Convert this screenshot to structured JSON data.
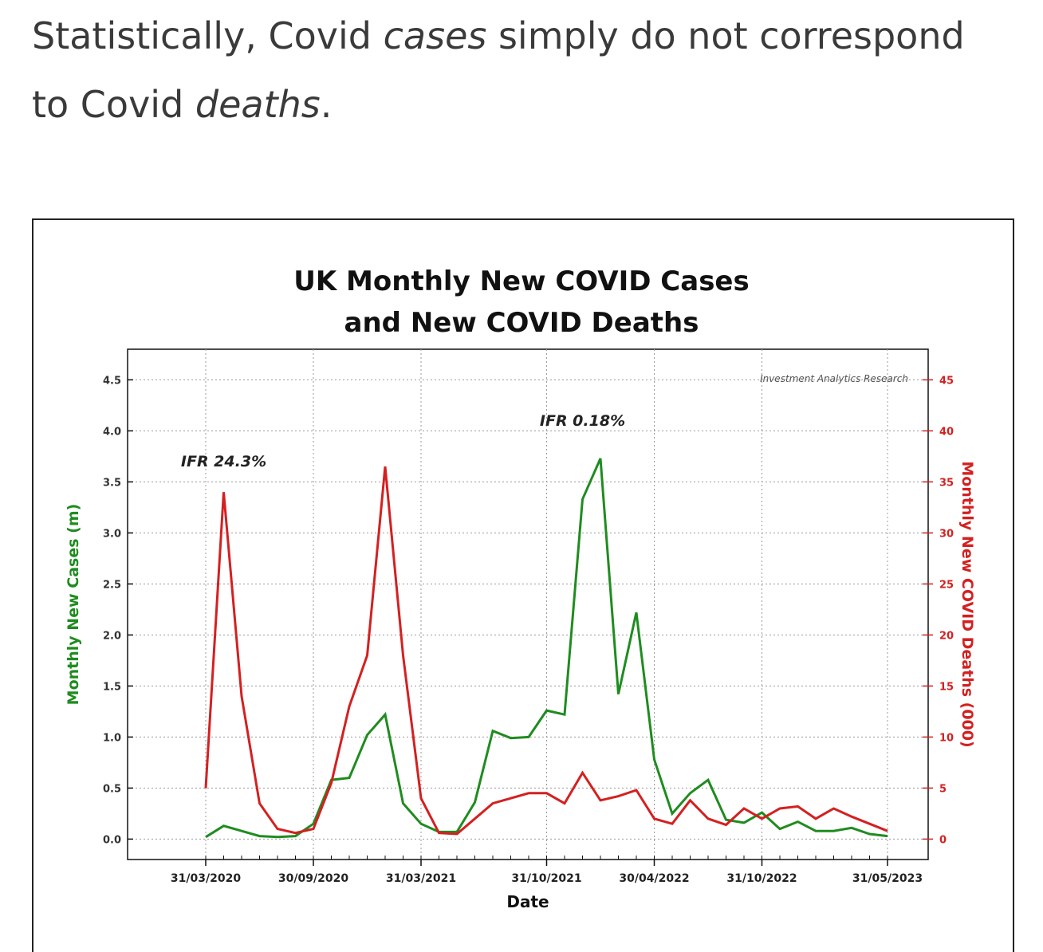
{
  "headline": {
    "part1": "Statistically, Covid ",
    "em1": "cases",
    "part2": " simply do not correspond to Covid ",
    "em2": "deaths",
    "part3": "."
  },
  "colors": {
    "cases": "#1f8c1f",
    "deaths": "#d42020",
    "axis": "#111111",
    "grid": "#9a9a9a"
  },
  "chart_data": {
    "type": "line",
    "title_line1": "UK Monthly New COVID Cases",
    "title_line2": "and New COVID Deaths",
    "watermark": "Investment Analytics Research",
    "xlabel": "Date",
    "ylabel_left": "Monthly New Cases (m)",
    "ylabel_right": "Monthly New COVID Deaths (000)",
    "ylim_left": [
      -0.2,
      4.8
    ],
    "ylim_right": [
      -2,
      48
    ],
    "yticks_left": [
      "0.0",
      "0.5",
      "1.0",
      "1.5",
      "2.0",
      "2.5",
      "3.0",
      "3.5",
      "4.0",
      "4.5"
    ],
    "yticks_right": [
      "0",
      "5",
      "10",
      "15",
      "20",
      "25",
      "30",
      "35",
      "40",
      "45"
    ],
    "x_tick_labels": [
      "31/03/2020",
      "30/09/2020",
      "31/03/2021",
      "31/10/2021",
      "30/04/2022",
      "31/10/2022",
      "31/05/2023"
    ],
    "x_tick_month_index": [
      0,
      6,
      12,
      19,
      25,
      31,
      38
    ],
    "x_month_count": 39,
    "annotations": [
      {
        "text": "IFR 24.3%",
        "month": 1,
        "value_left": 3.65
      },
      {
        "text": "IFR 0.18%",
        "month": 21,
        "value_left": 4.05
      }
    ],
    "series": [
      {
        "name": "Monthly New Cases (m)",
        "axis": "left",
        "color_key": "cases",
        "values": [
          0.02,
          0.13,
          0.08,
          0.03,
          0.02,
          0.03,
          0.15,
          0.58,
          0.6,
          1.02,
          1.22,
          0.35,
          0.15,
          0.07,
          0.07,
          0.36,
          1.06,
          0.99,
          1.0,
          1.26,
          1.22,
          3.33,
          3.73,
          1.42,
          2.22,
          0.78,
          0.25,
          0.45,
          0.58,
          0.19,
          0.16,
          0.26,
          0.1,
          0.17,
          0.08,
          0.08,
          0.11,
          0.05,
          0.03
        ]
      },
      {
        "name": "Monthly New COVID Deaths (000)",
        "axis": "right",
        "color_key": "deaths",
        "values": [
          5.0,
          34.0,
          14.0,
          3.5,
          1.0,
          0.6,
          1.0,
          5.5,
          13.0,
          18.0,
          36.5,
          18.0,
          4.0,
          0.6,
          0.5,
          2.0,
          3.5,
          4.0,
          4.5,
          4.5,
          3.5,
          6.5,
          3.8,
          4.2,
          4.8,
          2.0,
          1.5,
          3.8,
          2.0,
          1.4,
          3.0,
          2.0,
          3.0,
          3.2,
          2.0,
          3.0,
          2.2,
          1.5,
          0.8
        ]
      }
    ]
  }
}
